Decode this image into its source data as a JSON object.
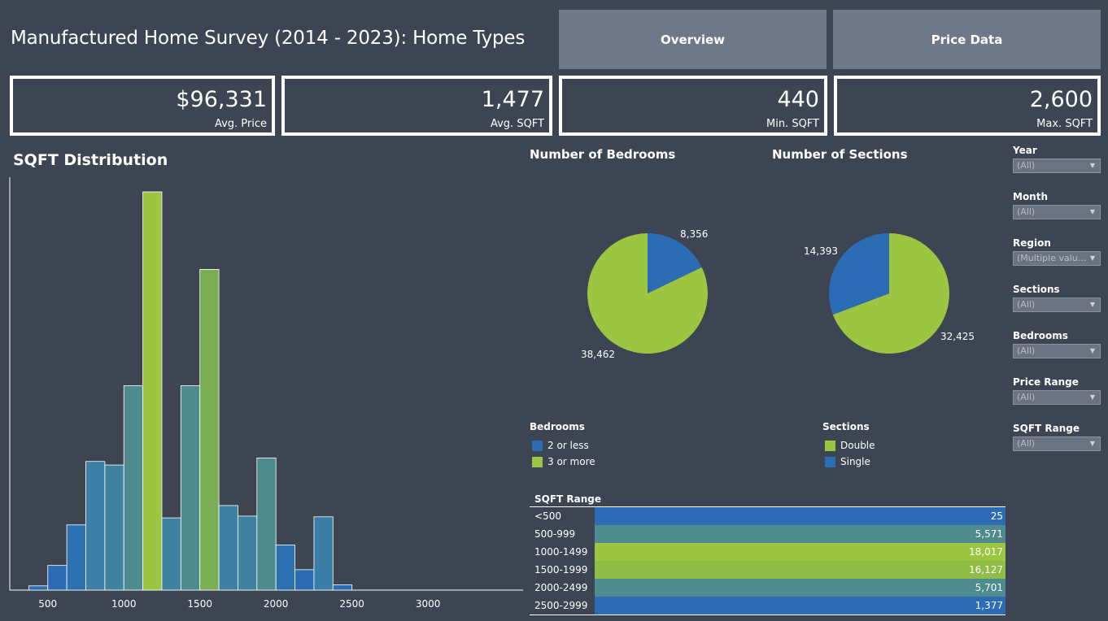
{
  "header": {
    "title": "Manufactured Home Survey (2014 - 2023): Home Types",
    "nav": [
      "Overview",
      "Price Data"
    ]
  },
  "kpis": [
    {
      "value": "$96,331",
      "label": "Avg. Price"
    },
    {
      "value": "1,477",
      "label": "Avg. SQFT"
    },
    {
      "value": "440",
      "label": "Min. SQFT"
    },
    {
      "value": "2,600",
      "label": "Max. SQFT"
    }
  ],
  "colors": {
    "blue": "#2b6cb5",
    "green": "#9cc541",
    "teal": "#4e8b8e",
    "background": "#3d4452"
  },
  "filters": [
    {
      "label": "Year",
      "value": "(All)"
    },
    {
      "label": "Month",
      "value": "(All)"
    },
    {
      "label": "Region",
      "value": "(Multiple valu..."
    },
    {
      "label": "Sections",
      "value": "(All)"
    },
    {
      "label": "Bedrooms",
      "value": "(All)"
    },
    {
      "label": "Price Range",
      "value": "(All)"
    },
    {
      "label": "SQFT Range",
      "value": "(All)"
    }
  ],
  "chart_data": [
    {
      "type": "bar",
      "title": "SQFT Distribution",
      "bin_width": 125,
      "x": [
        375,
        500,
        625,
        750,
        875,
        1000,
        1125,
        1250,
        1375,
        1500,
        1625,
        1750,
        1875,
        2000,
        2125,
        2250,
        2375,
        2500
      ],
      "values": [
        120,
        700,
        1850,
        3650,
        3550,
        5800,
        11300,
        2050,
        5800,
        9100,
        2400,
        2100,
        3750,
        1280,
        580,
        2080,
        150,
        0
      ],
      "colors": [
        "#2b6cb5",
        "#2b6cb5",
        "#2d72b0",
        "#3b7fa6",
        "#3f829f",
        "#4e8b8e",
        "#9cc541",
        "#3f829f",
        "#4e8b8e",
        "#7bad55",
        "#3d80a3",
        "#3f829f",
        "#4e8b8e",
        "#2d72b0",
        "#2b6cb5",
        "#3a7ea7",
        "#2b6cb5",
        "#2b6cb5"
      ],
      "xticks": [
        500,
        1000,
        1500,
        2000,
        2500,
        3000
      ],
      "xlim": [
        250,
        3625
      ],
      "ylim": [
        0,
        11900
      ],
      "grid": false
    },
    {
      "type": "pie",
      "title": "Number of Bedrooms",
      "slices": [
        {
          "label": "2 or less",
          "value": 8356,
          "display": "8,356",
          "color": "#2b6cb5"
        },
        {
          "label": "3 or more",
          "value": 38462,
          "display": "38,462",
          "color": "#9cc541"
        }
      ],
      "legend": {
        "title": "Bedrooms",
        "items": [
          "2 or less",
          "3 or more"
        ]
      }
    },
    {
      "type": "pie",
      "title": "Number of Sections",
      "slices": [
        {
          "label": "Double",
          "value": 32425,
          "display": "32,425",
          "color": "#9cc541"
        },
        {
          "label": "Single",
          "value": 14393,
          "display": "14,393",
          "color": "#2b6cb5"
        }
      ],
      "legend": {
        "title": "Sections",
        "items": [
          "Double",
          "Single"
        ]
      }
    },
    {
      "type": "table",
      "title": "SQFT Range",
      "rows": [
        {
          "label": "<500",
          "value": 25,
          "display": "25",
          "color": "#2b6cb5"
        },
        {
          "label": "500-999",
          "value": 5571,
          "display": "5,571",
          "color": "#4e8b8e"
        },
        {
          "label": "1000-1499",
          "value": 18017,
          "display": "18,017",
          "color": "#9cc541"
        },
        {
          "label": "1500-1999",
          "value": 16127,
          "display": "16,127",
          "color": "#8fbd47"
        },
        {
          "label": "2000-2499",
          "value": 5701,
          "display": "5,701",
          "color": "#4e8b8e"
        },
        {
          "label": "2500-2999",
          "value": 1377,
          "display": "1,377",
          "color": "#2b6cb5"
        }
      ]
    }
  ]
}
